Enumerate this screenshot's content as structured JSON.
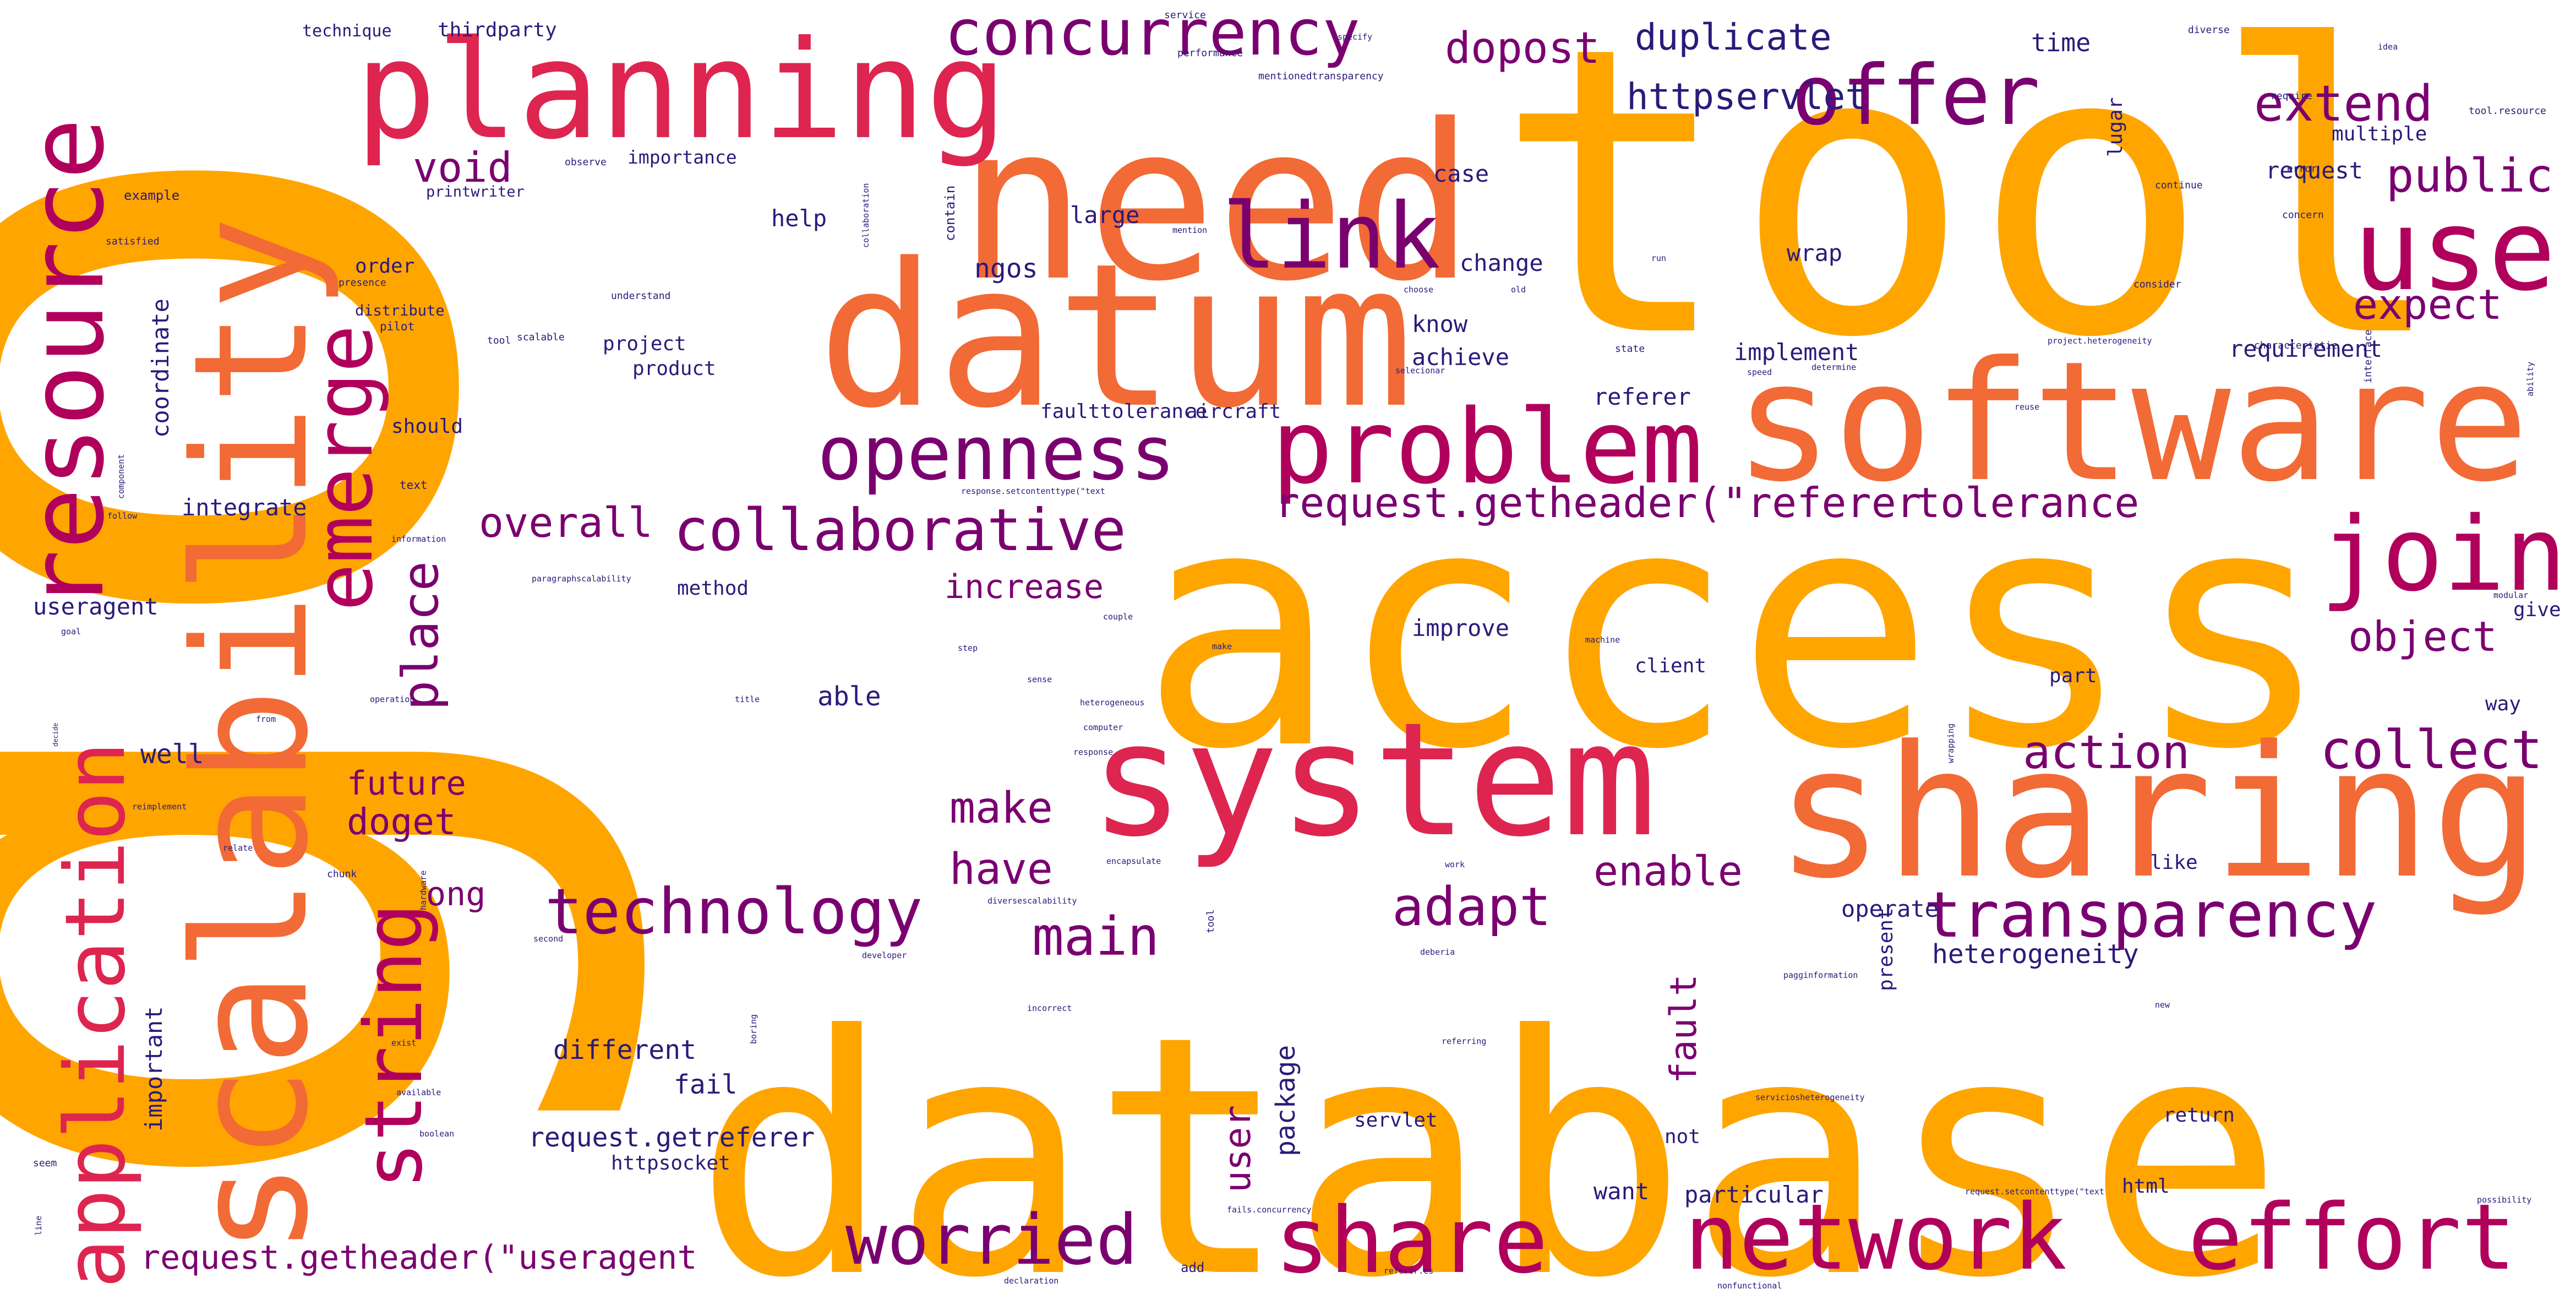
{
  "colors": {
    "orange": "#FFA500",
    "coral": "#F26A35",
    "crimson": "#DD2550",
    "magenta": "#B0005C",
    "purple": "#7A0070",
    "navy": "#2B1A7A"
  },
  "words": [
    {
      "text": "go",
      "color": "orange",
      "vertical": true
    },
    {
      "text": "database",
      "color": "orange"
    },
    {
      "text": "tool",
      "color": "orange"
    },
    {
      "text": "access",
      "color": "orange"
    },
    {
      "text": "need",
      "color": "coral"
    },
    {
      "text": "datum",
      "color": "coral"
    },
    {
      "text": "software",
      "color": "coral"
    },
    {
      "text": "sharing",
      "color": "coral"
    },
    {
      "text": "scalability",
      "color": "coral",
      "vertical": true
    },
    {
      "text": "system",
      "color": "crimson"
    },
    {
      "text": "planning",
      "color": "crimson"
    },
    {
      "text": "problem",
      "color": "magenta"
    },
    {
      "text": "resource",
      "color": "magenta",
      "vertical": true
    },
    {
      "text": "use",
      "color": "magenta"
    },
    {
      "text": "join",
      "color": "magenta"
    },
    {
      "text": "share",
      "color": "magenta"
    },
    {
      "text": "network",
      "color": "magenta"
    },
    {
      "text": "effort",
      "color": "magenta"
    },
    {
      "text": "application",
      "color": "crimson",
      "vertical": true
    },
    {
      "text": "string",
      "color": "magenta",
      "vertical": true
    },
    {
      "text": "emerge",
      "color": "magenta",
      "vertical": true
    },
    {
      "text": "link",
      "color": "purple"
    },
    {
      "text": "offer",
      "color": "purple"
    },
    {
      "text": "openness",
      "color": "purple"
    },
    {
      "text": "concurrency",
      "color": "purple"
    },
    {
      "text": "worried",
      "color": "purple"
    },
    {
      "text": "technology",
      "color": "purple"
    },
    {
      "text": "transparency",
      "color": "purple"
    },
    {
      "text": "collaborative",
      "color": "purple"
    },
    {
      "text": "request.getheader(\"referer",
      "color": "purple"
    },
    {
      "text": "tolerance",
      "color": "purple"
    },
    {
      "text": "extend",
      "color": "purple"
    },
    {
      "text": "public",
      "color": "purple"
    },
    {
      "text": "expect",
      "color": "purple"
    },
    {
      "text": "collect",
      "color": "purple"
    },
    {
      "text": "action",
      "color": "purple"
    },
    {
      "text": "object",
      "color": "purple"
    },
    {
      "text": "adapt",
      "color": "purple"
    },
    {
      "text": "main",
      "color": "purple"
    },
    {
      "text": "make",
      "color": "purple"
    },
    {
      "text": "have",
      "color": "purple"
    },
    {
      "text": "enable",
      "color": "purple"
    },
    {
      "text": "dopost",
      "color": "purple"
    },
    {
      "text": "duplicate",
      "color": "navy"
    },
    {
      "text": "httpservlet",
      "color": "navy"
    },
    {
      "text": "void",
      "color": "purple"
    },
    {
      "text": "overall",
      "color": "purple"
    },
    {
      "text": "increase",
      "color": "purple"
    },
    {
      "text": "place",
      "color": "purple",
      "vertical": true
    },
    {
      "text": "request.getheader(\"useragent",
      "color": "purple"
    },
    {
      "text": "doget",
      "color": "purple"
    },
    {
      "text": "future",
      "color": "purple"
    },
    {
      "text": "ong",
      "color": "purple"
    },
    {
      "text": "user",
      "color": "purple",
      "vertical": true
    },
    {
      "text": "fault",
      "color": "purple",
      "vertical": true
    },
    {
      "text": "well",
      "color": "navy"
    },
    {
      "text": "able",
      "color": "navy"
    },
    {
      "text": "heterogeneity",
      "color": "navy"
    },
    {
      "text": "time",
      "color": "navy"
    },
    {
      "text": "request",
      "color": "navy"
    },
    {
      "text": "requirement",
      "color": "navy"
    },
    {
      "text": "implement",
      "color": "navy"
    },
    {
      "text": "achieve",
      "color": "navy"
    },
    {
      "text": "know",
      "color": "navy"
    },
    {
      "text": "change",
      "color": "navy"
    },
    {
      "text": "case",
      "color": "navy"
    },
    {
      "text": "help",
      "color": "navy"
    },
    {
      "text": "ngos",
      "color": "navy"
    },
    {
      "text": "large",
      "color": "navy"
    },
    {
      "text": "wrap",
      "color": "navy"
    },
    {
      "text": "multiple",
      "color": "navy"
    },
    {
      "text": "referer",
      "color": "navy"
    },
    {
      "text": "aircraft",
      "color": "navy"
    },
    {
      "text": "faulttolerance",
      "color": "navy"
    },
    {
      "text": "improve",
      "color": "navy"
    },
    {
      "text": "client",
      "color": "navy"
    },
    {
      "text": "part",
      "color": "navy"
    },
    {
      "text": "give",
      "color": "navy"
    },
    {
      "text": "way",
      "color": "navy"
    },
    {
      "text": "different",
      "color": "navy"
    },
    {
      "text": "fail",
      "color": "navy"
    },
    {
      "text": "request.getreferer",
      "color": "navy"
    },
    {
      "text": "httpsocket",
      "color": "navy"
    },
    {
      "text": "servlet",
      "color": "navy"
    },
    {
      "text": "not",
      "color": "navy"
    },
    {
      "text": "want",
      "color": "navy"
    },
    {
      "text": "particular",
      "color": "navy"
    },
    {
      "text": "html",
      "color": "navy"
    },
    {
      "text": "return",
      "color": "navy"
    },
    {
      "text": "like",
      "color": "navy"
    },
    {
      "text": "operate",
      "color": "navy"
    },
    {
      "text": "package",
      "color": "navy",
      "vertical": true
    },
    {
      "text": "present",
      "color": "navy",
      "vertical": true
    },
    {
      "text": "integrate",
      "color": "navy"
    },
    {
      "text": "coordinate",
      "color": "navy",
      "vertical": true
    },
    {
      "text": "useragent",
      "color": "navy"
    },
    {
      "text": "method",
      "color": "navy"
    },
    {
      "text": "project",
      "color": "navy"
    },
    {
      "text": "product",
      "color": "navy"
    },
    {
      "text": "order",
      "color": "navy"
    },
    {
      "text": "distribute",
      "color": "navy"
    },
    {
      "text": "printwriter",
      "color": "navy"
    },
    {
      "text": "importance",
      "color": "navy"
    },
    {
      "text": "technique",
      "color": "navy"
    },
    {
      "text": "thirdparty",
      "color": "navy"
    },
    {
      "text": "should",
      "color": "navy"
    },
    {
      "text": "important",
      "color": "navy",
      "vertical": true
    },
    {
      "text": "lugar",
      "color": "navy",
      "vertical": true
    },
    {
      "text": "contain",
      "color": "navy",
      "vertical": true
    },
    {
      "text": "text",
      "color": "navy"
    },
    {
      "text": "example",
      "color": "navy"
    },
    {
      "text": "satisfied",
      "color": "navy"
    },
    {
      "text": "presence",
      "color": "navy"
    },
    {
      "text": "pilot",
      "color": "navy"
    },
    {
      "text": "scalable",
      "color": "navy"
    },
    {
      "text": "understand",
      "color": "navy"
    },
    {
      "text": "observe",
      "color": "navy"
    },
    {
      "text": "collaboration",
      "color": "navy",
      "vertical": true
    },
    {
      "text": "specify",
      "color": "navy"
    },
    {
      "text": "service",
      "color": "navy"
    },
    {
      "text": "performance",
      "color": "navy"
    },
    {
      "text": "mentionedtransparency",
      "color": "navy"
    },
    {
      "text": "diverse",
      "color": "navy"
    },
    {
      "text": "error",
      "color": "navy"
    },
    {
      "text": "require",
      "color": "navy"
    },
    {
      "text": "continue",
      "color": "navy"
    },
    {
      "text": "concern",
      "color": "navy"
    },
    {
      "text": "consider",
      "color": "navy"
    },
    {
      "text": "characteristic",
      "color": "navy"
    },
    {
      "text": "interface",
      "color": "navy",
      "vertical": true
    },
    {
      "text": "ability",
      "color": "navy",
      "vertical": true
    },
    {
      "text": "tool.resource",
      "color": "navy"
    },
    {
      "text": "idea",
      "color": "navy"
    },
    {
      "text": "mention",
      "color": "navy"
    },
    {
      "text": "choose",
      "color": "navy"
    },
    {
      "text": "old",
      "color": "navy"
    },
    {
      "text": "run",
      "color": "navy"
    },
    {
      "text": "state",
      "color": "navy"
    },
    {
      "text": "speed",
      "color": "navy"
    },
    {
      "text": "determine",
      "color": "navy"
    },
    {
      "text": "selecionar",
      "color": "navy"
    },
    {
      "text": "project.heterogeneity",
      "color": "navy"
    },
    {
      "text": "reuse",
      "color": "navy"
    },
    {
      "text": "tool",
      "color": "navy"
    },
    {
      "text": "response.setcontenttype(\"text",
      "color": "navy"
    },
    {
      "text": "paragraphscalability",
      "color": "navy"
    },
    {
      "text": "information",
      "color": "navy"
    },
    {
      "text": "modular",
      "color": "navy"
    },
    {
      "text": "machine",
      "color": "navy"
    },
    {
      "text": "couple",
      "color": "navy"
    },
    {
      "text": "make",
      "color": "navy"
    },
    {
      "text": "sense",
      "color": "navy"
    },
    {
      "text": "heterogeneous",
      "color": "navy"
    },
    {
      "text": "computer",
      "color": "navy"
    },
    {
      "text": "response",
      "color": "navy"
    },
    {
      "text": "step",
      "color": "navy"
    },
    {
      "text": "title",
      "color": "navy"
    },
    {
      "text": "from",
      "color": "navy"
    },
    {
      "text": "operation",
      "color": "navy"
    },
    {
      "text": "decide",
      "color": "navy",
      "vertical": true
    },
    {
      "text": "component",
      "color": "navy",
      "vertical": true
    },
    {
      "text": "follow",
      "color": "navy"
    },
    {
      "text": "goal",
      "color": "navy"
    },
    {
      "text": "reimplement",
      "color": "navy"
    },
    {
      "text": "relate",
      "color": "navy"
    },
    {
      "text": "chunk",
      "color": "navy"
    },
    {
      "text": "hardware",
      "color": "navy",
      "vertical": true
    },
    {
      "text": "second",
      "color": "navy"
    },
    {
      "text": "exist",
      "color": "navy"
    },
    {
      "text": "available",
      "color": "navy"
    },
    {
      "text": "boolean",
      "color": "navy"
    },
    {
      "text": "seem",
      "color": "navy"
    },
    {
      "text": "line",
      "color": "navy",
      "vertical": true
    },
    {
      "text": "tool",
      "color": "navy",
      "vertical": true
    },
    {
      "text": "deberia",
      "color": "navy"
    },
    {
      "text": "pagginformation",
      "color": "navy"
    },
    {
      "text": "developer",
      "color": "navy"
    },
    {
      "text": "incorrect",
      "color": "navy"
    },
    {
      "text": "boring",
      "color": "navy",
      "vertical": true
    },
    {
      "text": "referring",
      "color": "navy"
    },
    {
      "text": "serviciosheterogeneity",
      "color": "navy"
    },
    {
      "text": "add",
      "color": "navy"
    },
    {
      "text": "declaration",
      "color": "navy"
    },
    {
      "text": "nonfunctional",
      "color": "navy"
    },
    {
      "text": "referer.es",
      "color": "navy"
    },
    {
      "text": "request.setcontenttype(\"text",
      "color": "navy"
    },
    {
      "text": "possibility",
      "color": "navy"
    },
    {
      "text": "wrapping",
      "color": "navy",
      "vertical": true
    },
    {
      "text": "encapsulate",
      "color": "navy"
    },
    {
      "text": "work",
      "color": "navy"
    },
    {
      "text": "diversescalability",
      "color": "navy"
    },
    {
      "text": "fails.concurrency",
      "color": "navy"
    },
    {
      "text": "new",
      "color": "navy"
    },
    {
      "text": "quit",
      "color": "navy"
    }
  ]
}
